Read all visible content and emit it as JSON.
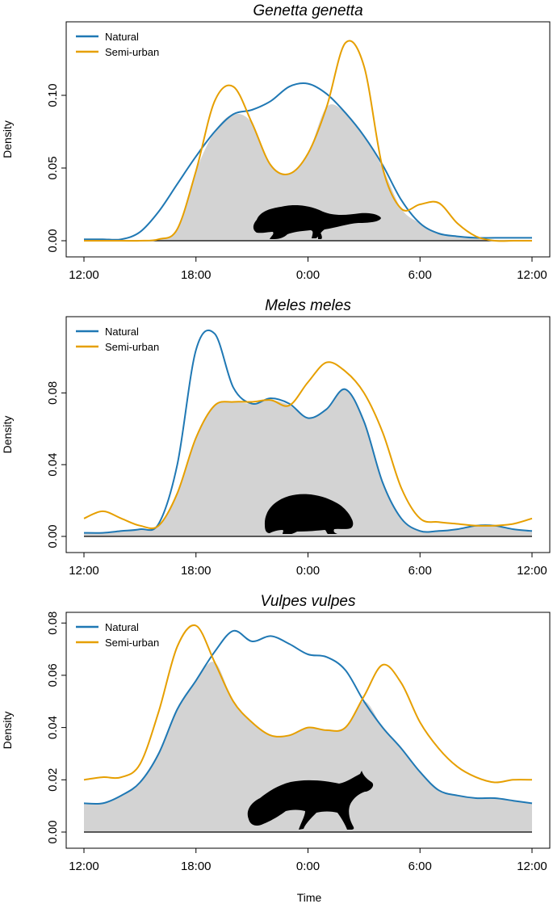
{
  "figure": {
    "xlabel": "Time"
  },
  "colors": {
    "natural": "#1f78b4",
    "semi_urban": "#e69f00",
    "overlap_fill": "#d3d3d3"
  },
  "chart_data": [
    {
      "type": "line",
      "title": "Genetta genetta",
      "ylabel": "Density",
      "xlim": [
        0,
        24
      ],
      "ylim": [
        0,
        0.145
      ],
      "x_ticks": [
        0,
        6,
        12,
        18,
        24
      ],
      "x_tick_labels": [
        "12:00",
        "18:00",
        "0:00",
        "6:00",
        "12:00"
      ],
      "y_ticks": [
        0,
        0.05,
        0.1
      ],
      "y_tick_labels": [
        "0.00",
        "0.05",
        "0.10"
      ],
      "legend_position": "top-left",
      "overlap_shaded": true,
      "silhouette": "genet-icon",
      "x": [
        0,
        1,
        2,
        3,
        4,
        5,
        6,
        7,
        8,
        9,
        10,
        11,
        12,
        13,
        14,
        15,
        16,
        17,
        18,
        19,
        20,
        21,
        22,
        23,
        24
      ],
      "series": [
        {
          "name": "Natural",
          "values": [
            0.001,
            0.001,
            0.001,
            0.006,
            0.02,
            0.039,
            0.058,
            0.075,
            0.087,
            0.09,
            0.096,
            0.106,
            0.108,
            0.101,
            0.088,
            0.072,
            0.052,
            0.028,
            0.012,
            0.005,
            0.003,
            0.002,
            0.002,
            0.002,
            0.002
          ]
        },
        {
          "name": "Semi-urban",
          "values": [
            0.0,
            0.0,
            0.0,
            0.0,
            0.001,
            0.008,
            0.048,
            0.096,
            0.106,
            0.081,
            0.052,
            0.046,
            0.06,
            0.092,
            0.136,
            0.12,
            0.05,
            0.022,
            0.025,
            0.026,
            0.012,
            0.003,
            0.0,
            0.0,
            0.0
          ]
        }
      ]
    },
    {
      "type": "line",
      "title": "Meles meles",
      "ylabel": "Density",
      "xlim": [
        0,
        24
      ],
      "ylim": [
        0,
        0.118
      ],
      "x_ticks": [
        0,
        6,
        12,
        18,
        24
      ],
      "x_tick_labels": [
        "12:00",
        "18:00",
        "0:00",
        "6:00",
        "12:00"
      ],
      "y_ticks": [
        0,
        0.04,
        0.08
      ],
      "y_tick_labels": [
        "0.00",
        "0.04",
        "0.08"
      ],
      "legend_position": "top-left",
      "overlap_shaded": true,
      "silhouette": "badger-icon",
      "x": [
        0,
        1,
        2,
        3,
        4,
        5,
        6,
        7,
        8,
        9,
        10,
        11,
        12,
        13,
        14,
        15,
        16,
        17,
        18,
        19,
        20,
        21,
        22,
        23,
        24
      ],
      "series": [
        {
          "name": "Natural",
          "values": [
            0.002,
            0.002,
            0.003,
            0.004,
            0.007,
            0.04,
            0.104,
            0.113,
            0.083,
            0.074,
            0.077,
            0.074,
            0.066,
            0.071,
            0.082,
            0.064,
            0.03,
            0.01,
            0.003,
            0.003,
            0.004,
            0.006,
            0.006,
            0.004,
            0.003
          ]
        },
        {
          "name": "Semi-urban",
          "values": [
            0.01,
            0.014,
            0.01,
            0.006,
            0.006,
            0.024,
            0.055,
            0.073,
            0.075,
            0.075,
            0.076,
            0.073,
            0.086,
            0.097,
            0.092,
            0.08,
            0.058,
            0.027,
            0.01,
            0.008,
            0.007,
            0.006,
            0.006,
            0.007,
            0.01
          ]
        }
      ]
    },
    {
      "type": "line",
      "title": "Vulpes vulpes",
      "ylabel": "Density",
      "xlim": [
        0,
        24
      ],
      "ylim": [
        0,
        0.081
      ],
      "x_ticks": [
        0,
        6,
        12,
        18,
        24
      ],
      "x_tick_labels": [
        "12:00",
        "18:00",
        "0:00",
        "6:00",
        "12:00"
      ],
      "y_ticks": [
        0,
        0.02,
        0.04,
        0.06,
        0.08
      ],
      "y_tick_labels": [
        "0.00",
        "0.02",
        "0.04",
        "0.06",
        "0.08"
      ],
      "legend_position": "top-left",
      "overlap_shaded": true,
      "silhouette": "fox-icon",
      "x": [
        0,
        1,
        2,
        3,
        4,
        5,
        6,
        7,
        8,
        9,
        10,
        11,
        12,
        13,
        14,
        15,
        16,
        17,
        18,
        19,
        20,
        21,
        22,
        23,
        24
      ],
      "series": [
        {
          "name": "Natural",
          "values": [
            0.011,
            0.011,
            0.014,
            0.019,
            0.03,
            0.047,
            0.058,
            0.069,
            0.077,
            0.073,
            0.075,
            0.072,
            0.068,
            0.067,
            0.062,
            0.05,
            0.04,
            0.032,
            0.023,
            0.016,
            0.014,
            0.013,
            0.013,
            0.012,
            0.011
          ]
        },
        {
          "name": "Semi-urban",
          "values": [
            0.02,
            0.021,
            0.021,
            0.026,
            0.046,
            0.071,
            0.079,
            0.065,
            0.05,
            0.042,
            0.037,
            0.037,
            0.04,
            0.039,
            0.04,
            0.052,
            0.064,
            0.057,
            0.042,
            0.032,
            0.025,
            0.021,
            0.019,
            0.02,
            0.02
          ]
        }
      ]
    }
  ]
}
